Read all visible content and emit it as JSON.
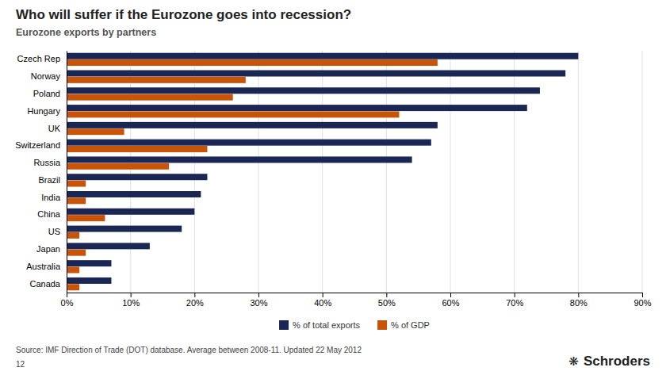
{
  "chart_data": {
    "type": "bar",
    "orientation": "horizontal",
    "title": "Who will suffer if the Eurozone goes into recession?",
    "subtitle": "Eurozone exports by partners",
    "categories": [
      "Czech Rep",
      "Norway",
      "Poland",
      "Hungary",
      "UK",
      "Switzerland",
      "Russia",
      "Brazil",
      "India",
      "China",
      "US",
      "Japan",
      "Australia",
      "Canada"
    ],
    "series": [
      {
        "name": "% of total exports",
        "color": "#1a2654",
        "values": [
          80,
          78,
          74,
          72,
          58,
          57,
          54,
          22,
          21,
          20,
          18,
          13,
          7,
          7
        ]
      },
      {
        "name": "% of GDP",
        "color": "#c8540a",
        "values": [
          58,
          28,
          26,
          52,
          9,
          22,
          16,
          3,
          3,
          6,
          2,
          3,
          2,
          2
        ]
      }
    ],
    "xlim": [
      0,
      90
    ],
    "xticks": [
      {
        "value": 0,
        "label": "0%"
      },
      {
        "value": 10,
        "label": "10%"
      },
      {
        "value": 20,
        "label": "20%"
      },
      {
        "value": 30,
        "label": "30%"
      },
      {
        "value": 40,
        "label": "40%"
      },
      {
        "value": 50,
        "label": "50%"
      },
      {
        "value": 60,
        "label": "60%"
      },
      {
        "value": 70,
        "label": "70%"
      },
      {
        "value": 80,
        "label": "80%"
      },
      {
        "value": 90,
        "label": "90%"
      }
    ],
    "grid": true,
    "legend": "bottom",
    "annotations": [
      "Source: IMF Direction of Trade (DOT) database. Average between  2008-11. Updated 22 May 2012",
      "12",
      "Schroders",
      "❋"
    ]
  }
}
